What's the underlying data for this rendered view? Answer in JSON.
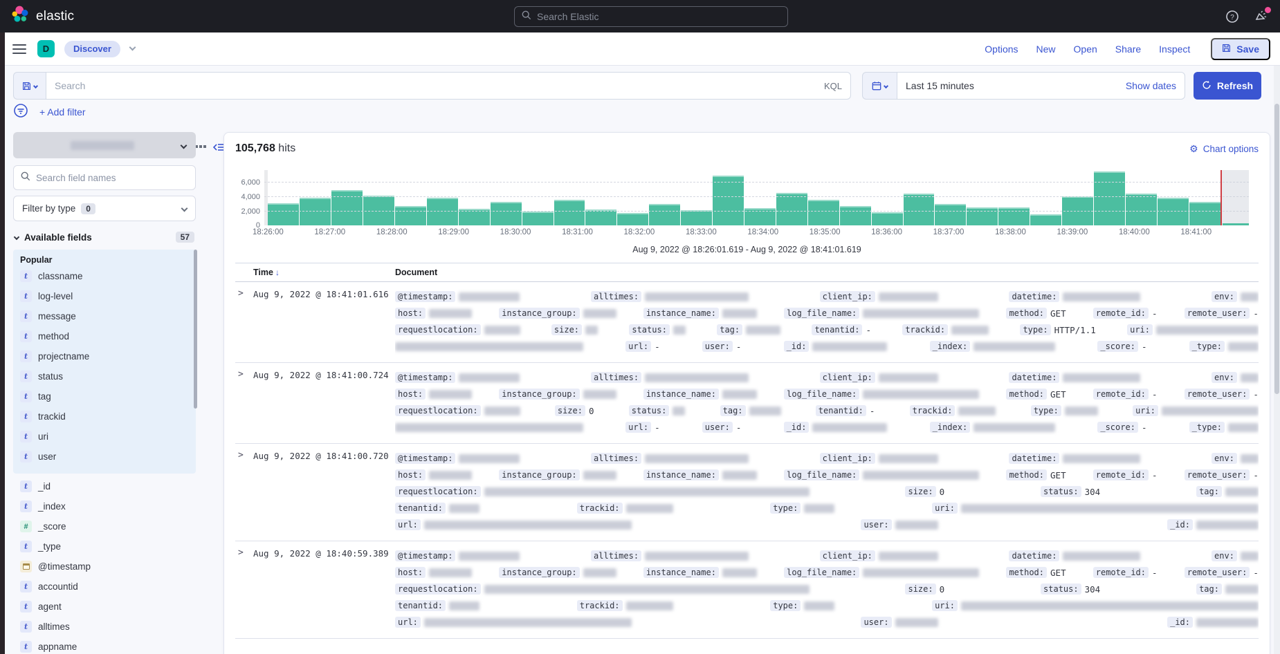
{
  "colors": {
    "accent": "#3a55d1",
    "bar_green": "#4cbea0",
    "danger_red": "#cf3e44",
    "space_avatar": "#00bfb3",
    "notification_dot": "#f04e98",
    "pill_bg": "#dce2f7",
    "save_bg": "#e0e6f9"
  },
  "header": {
    "brand": "elastic",
    "search_placeholder": "Search Elastic"
  },
  "navbar": {
    "space_initial": "D",
    "breadcrumb": "Discover",
    "links": [
      "Options",
      "New",
      "Open",
      "Share",
      "Inspect"
    ],
    "save_label": "Save"
  },
  "querybar": {
    "search_placeholder": "Search",
    "kql_label": "KQL",
    "time_range": "Last 15 minutes",
    "show_dates_label": "Show dates",
    "refresh_label": "Refresh"
  },
  "filterbar": {
    "add_filter_label": "+ Add filter"
  },
  "sidebar": {
    "field_search_placeholder": "Search field names",
    "filter_by_type_label": "Filter by type",
    "filter_by_type_count": "0",
    "available_fields_label": "Available fields",
    "available_fields_count": "57",
    "popular_label": "Popular",
    "popular_fields": [
      {
        "name": "classname",
        "type": "t"
      },
      {
        "name": "log-level",
        "type": "t"
      },
      {
        "name": "message",
        "type": "t"
      },
      {
        "name": "method",
        "type": "t"
      },
      {
        "name": "projectname",
        "type": "t"
      },
      {
        "name": "status",
        "type": "t"
      },
      {
        "name": "tag",
        "type": "t"
      },
      {
        "name": "trackid",
        "type": "t"
      },
      {
        "name": "uri",
        "type": "t"
      },
      {
        "name": "user",
        "type": "t"
      }
    ],
    "fields": [
      {
        "name": "_id",
        "type": "t"
      },
      {
        "name": "_index",
        "type": "t"
      },
      {
        "name": "_score",
        "type": "#"
      },
      {
        "name": "_type",
        "type": "t"
      },
      {
        "name": "@timestamp",
        "type": "date"
      },
      {
        "name": "accountid",
        "type": "t"
      },
      {
        "name": "agent",
        "type": "t"
      },
      {
        "name": "alltimes",
        "type": "t"
      },
      {
        "name": "appname",
        "type": "t"
      }
    ]
  },
  "main": {
    "hits_value": "105,768",
    "hits_label": "hits",
    "chart_options_label": "Chart options",
    "chart_data": {
      "type": "bar",
      "title": "Document count histogram, 30 second buckets",
      "bucket_interval": "30s",
      "x_ticks": [
        "18:26:00",
        "18:27:00",
        "18:28:00",
        "18:29:00",
        "18:30:00",
        "18:31:00",
        "18:32:00",
        "18:33:00",
        "18:34:00",
        "18:35:00",
        "18:36:00",
        "18:37:00",
        "18:38:00",
        "18:39:00",
        "18:40:00",
        "18:41:00"
      ],
      "values": [
        3100,
        3900,
        5000,
        4200,
        2700,
        3900,
        2300,
        3300,
        2000,
        3600,
        2200,
        1800,
        3000,
        2100,
        7000,
        2400,
        4600,
        3600,
        2700,
        1900,
        4500,
        3000,
        2500,
        2500,
        1600,
        4100,
        7600,
        4500,
        3900,
        3300
      ],
      "partial_bucket_value": 150,
      "y_ticks": [
        {
          "label": "6,000",
          "value": 6000
        },
        {
          "label": "4,000",
          "value": 4000
        },
        {
          "label": "2,000",
          "value": 2000
        },
        {
          "label": "0",
          "value": 0
        }
      ],
      "ylim": [
        0,
        7800
      ],
      "grid": true,
      "current_time_marker": "18:41:01.619",
      "caption": "Aug 9, 2022 @ 18:26:01.619 - Aug 9, 2022 @ 18:41:01.619"
    },
    "table": {
      "time_col": "Time",
      "sort_arrow": "↓",
      "document_col": "Document",
      "rows": [
        {
          "time": "Aug 9, 2022 @ 18:41:01.616",
          "lines": [
            [
              [
                "@timestamp:",
                "",
                88
              ],
              [
                "alltimes:",
                "",
                150
              ],
              [
                "client_ip:",
                "",
                86
              ],
              [
                "datetime:",
                "",
                112
              ],
              [
                "env:",
                "",
                26
              ]
            ],
            [
              [
                "host:",
                "",
                62
              ],
              [
                "instance_group:",
                "",
                48
              ],
              [
                "instance_name:",
                "",
                50
              ],
              [
                "log_file_name:",
                "",
                168
              ],
              [
                "method:",
                "GET",
                0
              ],
              [
                "remote_id:",
                "-",
                0
              ],
              [
                "remote_user:",
                "-",
                0
              ]
            ],
            [
              [
                "requestlocation:",
                "",
                52
              ],
              [
                "size:",
                "",
                18
              ],
              [
                "status:",
                "",
                18
              ],
              [
                "tag:",
                "",
                50
              ],
              [
                "tenantid:",
                "-",
                0
              ],
              [
                "trackid:",
                "",
                54
              ],
              [
                "type:",
                "HTTP/1.1",
                0
              ],
              [
                "uri:",
                "",
                148
              ]
            ],
            [
              [
                "",
                "",
                272
              ],
              [
                "url:",
                "-",
                0
              ],
              [
                "user:",
                "-",
                0
              ],
              [
                "_id:",
                "",
                108
              ],
              [
                "_index:",
                "",
                118
              ],
              [
                "_score:",
                "-",
                0
              ],
              [
                "_type:",
                "",
                44
              ]
            ]
          ]
        },
        {
          "time": "Aug 9, 2022 @ 18:41:00.724",
          "lines": [
            [
              [
                "@timestamp:",
                "",
                88
              ],
              [
                "alltimes:",
                "",
                150
              ],
              [
                "client_ip:",
                "",
                86
              ],
              [
                "datetime:",
                "",
                112
              ],
              [
                "env:",
                "",
                26
              ]
            ],
            [
              [
                "host:",
                "",
                62
              ],
              [
                "instance_group:",
                "",
                48
              ],
              [
                "instance_name:",
                "",
                50
              ],
              [
                "log_file_name:",
                "",
                168
              ],
              [
                "method:",
                "GET",
                0
              ],
              [
                "remote_id:",
                "-",
                0
              ],
              [
                "remote_user:",
                "-",
                0
              ]
            ],
            [
              [
                "requestlocation:",
                "",
                52
              ],
              [
                "size:",
                "0",
                0
              ],
              [
                "status:",
                "",
                18
              ],
              [
                "tag:",
                "",
                46
              ],
              [
                "tenantid:",
                "-",
                0
              ],
              [
                "trackid:",
                "",
                54
              ],
              [
                "type:",
                "",
                48
              ],
              [
                "uri:",
                "",
                140
              ]
            ],
            [
              [
                "",
                "",
                272
              ],
              [
                "url:",
                "-",
                0
              ],
              [
                "user:",
                "-",
                0
              ],
              [
                "_id:",
                "",
                108
              ],
              [
                "_index:",
                "",
                118
              ],
              [
                "_score:",
                "-",
                0
              ],
              [
                "_type:",
                "",
                44
              ]
            ]
          ]
        },
        {
          "time": "Aug 9, 2022 @ 18:41:00.720",
          "lines": [
            [
              [
                "@timestamp:",
                "",
                88
              ],
              [
                "alltimes:",
                "",
                150
              ],
              [
                "client_ip:",
                "",
                86
              ],
              [
                "datetime:",
                "",
                112
              ],
              [
                "env:",
                "",
                26
              ]
            ],
            [
              [
                "host:",
                "",
                62
              ],
              [
                "instance_group:",
                "",
                48
              ],
              [
                "instance_name:",
                "",
                50
              ],
              [
                "log_file_name:",
                "",
                168
              ],
              [
                "method:",
                "GET",
                0
              ],
              [
                "remote_id:",
                "-",
                0
              ],
              [
                "remote_user:",
                "-",
                0
              ]
            ],
            [
              [
                "requestlocation:",
                "",
                470
              ],
              [
                "size:",
                "0",
                0
              ],
              [
                "status:",
                "304",
                0
              ],
              [
                "tag:",
                "",
                48
              ]
            ],
            [
              [
                "tenantid:",
                "",
                44
              ],
              [
                "trackid:",
                "",
                68
              ],
              [
                "type:",
                "",
                44
              ],
              [
                "uri:",
                "",
                430
              ]
            ],
            [
              [
                "url:",
                "",
                300
              ],
              [
                "user:",
                "",
                62
              ],
              [
                "_id:",
                "",
                90
              ]
            ]
          ]
        },
        {
          "time": "Aug 9, 2022 @ 18:40:59.389",
          "lines": [
            [
              [
                "@timestamp:",
                "",
                88
              ],
              [
                "alltimes:",
                "",
                150
              ],
              [
                "client_ip:",
                "",
                86
              ],
              [
                "datetime:",
                "",
                112
              ],
              [
                "env:",
                "",
                26
              ]
            ],
            [
              [
                "host:",
                "",
                62
              ],
              [
                "instance_group:",
                "",
                48
              ],
              [
                "instance_name:",
                "",
                50
              ],
              [
                "log_file_name:",
                "",
                168
              ],
              [
                "method:",
                "GET",
                0
              ],
              [
                "remote_id:",
                "-",
                0
              ],
              [
                "remote_user:",
                "-",
                0
              ]
            ],
            [
              [
                "requestlocation:",
                "",
                470
              ],
              [
                "size:",
                "0",
                0
              ],
              [
                "status:",
                "304",
                0
              ],
              [
                "tag:",
                "",
                48
              ]
            ],
            [
              [
                "tenantid:",
                "",
                44
              ],
              [
                "trackid:",
                "",
                68
              ],
              [
                "type:",
                "",
                44
              ],
              [
                "uri:",
                "",
                430
              ]
            ],
            [
              [
                "url:",
                "",
                300
              ],
              [
                "user:",
                "",
                62
              ],
              [
                "_id:",
                "",
                90
              ]
            ]
          ]
        }
      ]
    }
  }
}
